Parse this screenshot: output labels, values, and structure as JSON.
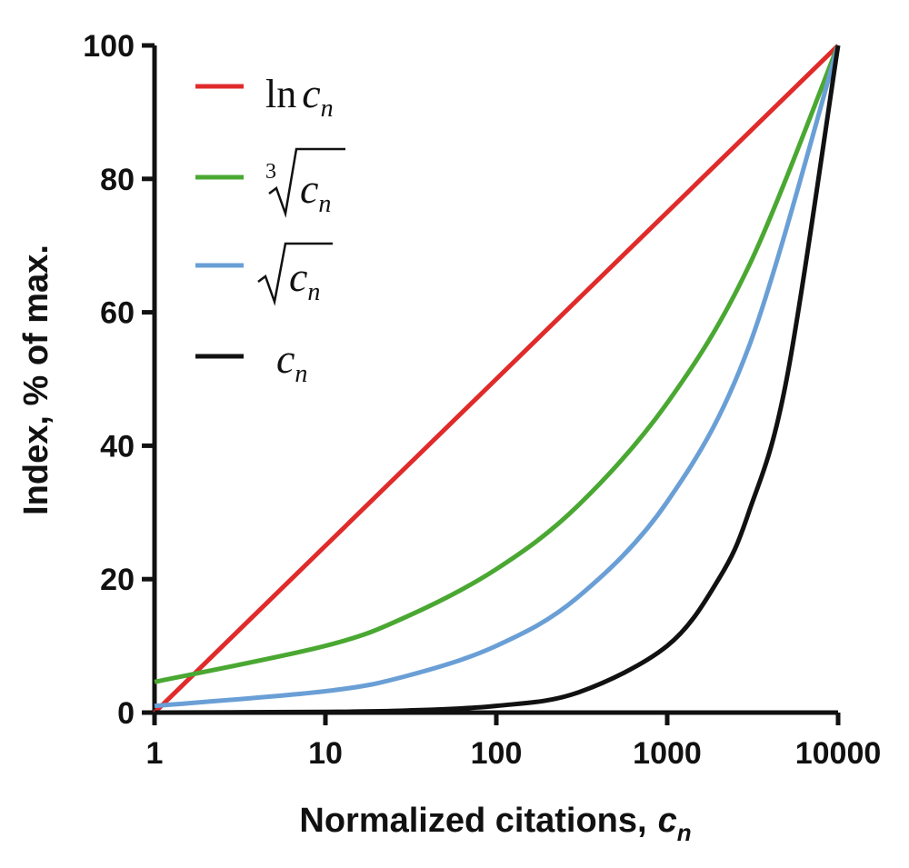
{
  "chart_data": {
    "type": "line",
    "xlabel": "Normalized citations,",
    "xlabel_symbol": "c",
    "xlabel_subscript": "n",
    "ylabel": "Index, % of max.",
    "x_scale": "log",
    "xlim": [
      1,
      10000
    ],
    "ylim": [
      0,
      100
    ],
    "x_ticks": [
      1,
      10,
      100,
      1000,
      10000
    ],
    "x_tick_labels": [
      "1",
      "10",
      "100",
      "1000",
      "10000"
    ],
    "y_ticks": [
      0,
      20,
      40,
      60,
      80,
      100
    ],
    "y_tick_labels": [
      "0",
      "20",
      "40",
      "60",
      "80",
      "100"
    ],
    "grid": false,
    "legend_position": "top-left",
    "series": [
      {
        "legend_label": "ln c_n",
        "color": "#e02b2b",
        "points": [
          [
            1,
            0
          ],
          [
            10,
            25
          ],
          [
            100,
            50
          ],
          [
            1000,
            75
          ],
          [
            10000,
            100
          ]
        ]
      },
      {
        "legend_label": "∛c_n",
        "color": "#4aa832",
        "points": [
          [
            1,
            4.6
          ],
          [
            10,
            10
          ],
          [
            30,
            14.4
          ],
          [
            100,
            21.5
          ],
          [
            300,
            31
          ],
          [
            1000,
            46.4
          ],
          [
            3000,
            66.9
          ],
          [
            10000,
            100
          ]
        ]
      },
      {
        "legend_label": "√c_n",
        "color": "#6a9fd6",
        "points": [
          [
            1,
            1
          ],
          [
            10,
            3.2
          ],
          [
            30,
            5.5
          ],
          [
            100,
            10
          ],
          [
            300,
            17.3
          ],
          [
            1000,
            31.6
          ],
          [
            3000,
            54.8
          ],
          [
            10000,
            100
          ]
        ]
      },
      {
        "legend_label": "c_n",
        "color": "#111111",
        "points": [
          [
            1,
            0
          ],
          [
            10,
            0.1
          ],
          [
            30,
            0.3
          ],
          [
            100,
            1
          ],
          [
            300,
            3
          ],
          [
            1000,
            10
          ],
          [
            2000,
            20
          ],
          [
            3000,
            30
          ],
          [
            5000,
            50
          ],
          [
            10000,
            100
          ]
        ]
      }
    ]
  }
}
